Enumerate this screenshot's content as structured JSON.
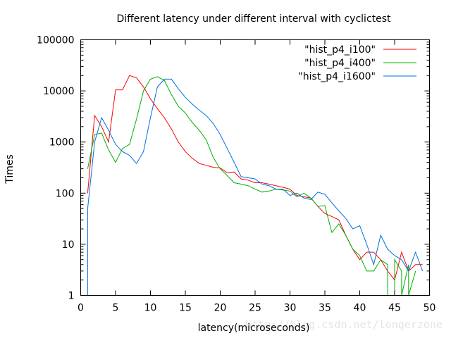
{
  "chart_data": {
    "type": "line",
    "title": "Different latency under different interval with cyclictest",
    "xlabel": "latency(microseconds)",
    "ylabel": "Times",
    "xlim": [
      0,
      50
    ],
    "ylim": [
      1,
      100000
    ],
    "yscale": "log",
    "grid": false,
    "legend_position": "top-right",
    "x_ticks": [
      "0",
      "5",
      "10",
      "15",
      "20",
      "25",
      "30",
      "35",
      "40",
      "45",
      "50"
    ],
    "y_ticks": [
      "1",
      "10",
      "100",
      "1000",
      "10000",
      "100000"
    ],
    "series": [
      {
        "name": "\"hist_p4_i100\"",
        "color": "#ff0000",
        "x": [
          1,
          2,
          3,
          4,
          5,
          6,
          7,
          8,
          9,
          10,
          11,
          12,
          13,
          14,
          15,
          16,
          17,
          18,
          19,
          20,
          21,
          22,
          23,
          24,
          25,
          26,
          27,
          28,
          29,
          30,
          31,
          32,
          33,
          34,
          35,
          36,
          37,
          38,
          39,
          40,
          41,
          42,
          43,
          44,
          45,
          46,
          47,
          48,
          49
        ],
        "y": [
          100,
          3300,
          2000,
          1000,
          10500,
          10500,
          20000,
          18000,
          12000,
          7000,
          4500,
          3000,
          1800,
          1000,
          650,
          480,
          380,
          350,
          320,
          310,
          250,
          260,
          190,
          180,
          160,
          160,
          150,
          140,
          130,
          120,
          90,
          85,
          80,
          55,
          40,
          35,
          30,
          15,
          8,
          5,
          7,
          7,
          5,
          3,
          2,
          7,
          3,
          4,
          4
        ]
      },
      {
        "name": "\"hist_p4_i400\"",
        "color": "#00b000",
        "x": [
          1,
          2,
          3,
          4,
          5,
          6,
          7,
          8,
          9,
          10,
          11,
          12,
          13,
          14,
          15,
          16,
          17,
          18,
          19,
          20,
          21,
          22,
          23,
          24,
          25,
          26,
          27,
          28,
          29,
          30,
          31,
          32,
          33,
          34,
          35,
          36,
          37,
          38,
          39,
          40,
          41,
          42,
          43,
          44,
          44,
          45,
          45,
          46,
          46,
          47,
          47,
          48
        ],
        "y": [
          300,
          1400,
          1500,
          700,
          400,
          750,
          900,
          2800,
          10000,
          17000,
          19000,
          16000,
          8500,
          5000,
          3700,
          2400,
          1700,
          1100,
          500,
          300,
          220,
          160,
          150,
          140,
          120,
          105,
          110,
          120,
          115,
          110,
          85,
          100,
          80,
          55,
          57,
          17,
          25,
          15,
          8,
          6,
          3,
          3,
          5,
          4,
          1,
          1,
          5,
          3,
          1,
          4,
          1,
          3
        ]
      },
      {
        "name": "\"hist_p4_i1600\"",
        "color": "#0070e0",
        "x": [
          1,
          1,
          2,
          3,
          4,
          5,
          6,
          7,
          8,
          9,
          10,
          11,
          12,
          13,
          14,
          15,
          16,
          17,
          18,
          19,
          20,
          21,
          22,
          23,
          24,
          25,
          26,
          27,
          28,
          29,
          30,
          31,
          32,
          33,
          34,
          35,
          36,
          37,
          38,
          39,
          40,
          41,
          42,
          43,
          44,
          45,
          46,
          47,
          48,
          49
        ],
        "y": [
          1,
          50,
          1000,
          3000,
          1700,
          900,
          650,
          550,
          380,
          650,
          3000,
          12000,
          17000,
          17000,
          11000,
          7500,
          5500,
          4200,
          3300,
          2300,
          1400,
          750,
          400,
          210,
          200,
          190,
          150,
          140,
          120,
          120,
          90,
          100,
          80,
          75,
          105,
          95,
          65,
          45,
          32,
          20,
          23,
          10,
          4,
          15,
          8,
          6,
          5,
          3,
          7,
          3
        ]
      }
    ]
  },
  "watermark": "http://blog.csdn.net/longerzone"
}
